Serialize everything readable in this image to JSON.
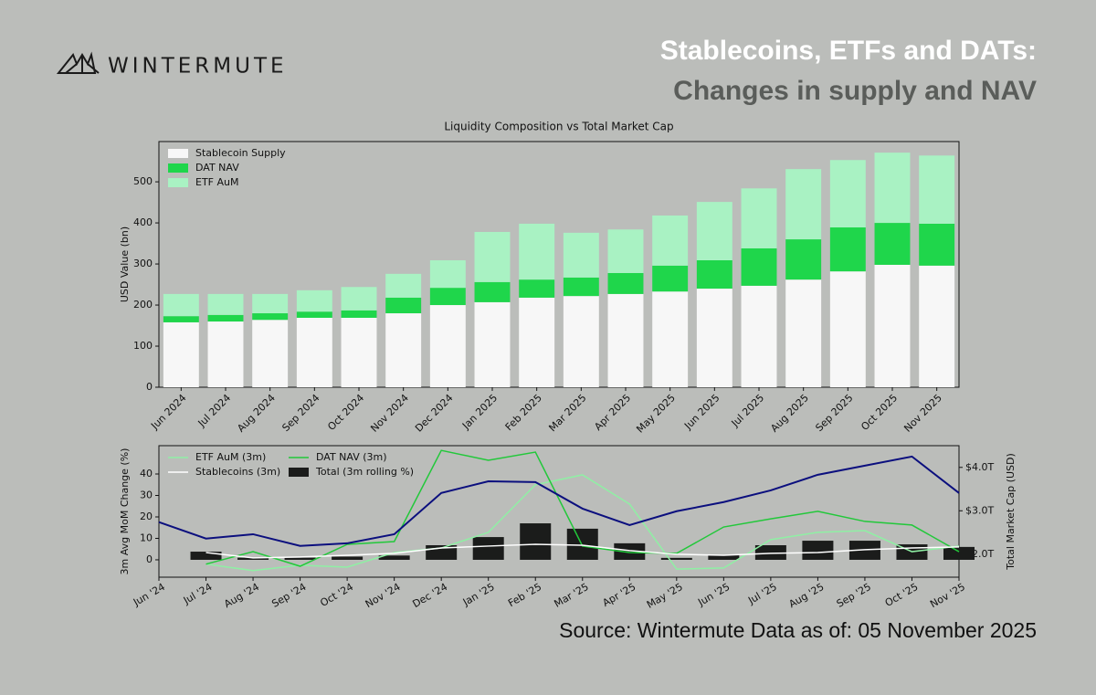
{
  "header": {
    "logo": "WINTERMUTE",
    "title": "Stablecoins, ETFs and DATs:",
    "subtitle": "Changes in supply and NAV"
  },
  "footer": {
    "source": "Source: Wintermute  Data as of: 05 November 2025"
  },
  "chart_data": [
    {
      "type": "bar",
      "stacked": true,
      "title": "Liquidity Composition vs Total Market Cap",
      "ylabel": "USD Value (bn)",
      "categories": [
        "Jun 2024",
        "Jul 2024",
        "Aug 2024",
        "Sep 2024",
        "Oct 2024",
        "Nov 2024",
        "Dec 2024",
        "Jan 2025",
        "Feb 2025",
        "Mar 2025",
        "Apr 2025",
        "May 2025",
        "Jun 2025",
        "Jul 2025",
        "Aug 2025",
        "Sep 2025",
        "Oct 2025",
        "Nov 2025"
      ],
      "series": [
        {
          "name": "Stablecoin Supply",
          "color": "#f7f7f7",
          "values": [
            158,
            160,
            164,
            169,
            169,
            180,
            200,
            207,
            218,
            222,
            227,
            233,
            240,
            247,
            262,
            282,
            298,
            296
          ]
        },
        {
          "name": "DAT NAV",
          "color": "#1fd64b",
          "values": [
            15,
            16,
            16,
            15,
            18,
            38,
            42,
            49,
            44,
            45,
            51,
            63,
            69,
            91,
            98,
            107,
            102,
            102
          ]
        },
        {
          "name": "ETF AuM",
          "color": "#a9f2c3",
          "values": [
            54,
            51,
            47,
            52,
            57,
            58,
            67,
            122,
            136,
            109,
            106,
            122,
            142,
            146,
            171,
            164,
            171,
            166
          ]
        }
      ],
      "ylim": [
        0,
        598
      ],
      "yticks": [
        0,
        100,
        200,
        300,
        400,
        500
      ],
      "legend": "upper left"
    },
    {
      "type": "combo",
      "ylabel": "3m Avg MoM Change (%)",
      "y2label": "Total Market Cap (USD)",
      "categories": [
        "Jun '24",
        "Jul '24",
        "Aug '24",
        "Sep '24",
        "Oct '24",
        "Nov '24",
        "Dec '24",
        "Jan '25",
        "Feb '25",
        "Mar '25",
        "Apr '25",
        "May '25",
        "Jun '25",
        "Jul '25",
        "Aug '25",
        "Sep '25",
        "Oct '25",
        "Nov '25"
      ],
      "series": [
        {
          "name": "ETF AuM (3m)",
          "type": "line",
          "color": "#8ff0a4",
          "values": [
            null,
            -2,
            -5,
            -2.5,
            -3.4,
            3.4,
            5.5,
            12.8,
            35,
            39.6,
            26,
            -4.3,
            -3.8,
            9.4,
            12.8,
            13.6,
            3.8,
            6.4
          ]
        },
        {
          "name": "DAT NAV (3m)",
          "type": "line",
          "color": "#22c83a",
          "values": [
            null,
            -2,
            3.8,
            -3,
            7.2,
            8.5,
            51,
            46.4,
            50.2,
            6.4,
            3.4,
            3,
            15.3,
            19.1,
            22.6,
            17.9,
            16.2,
            3.8
          ]
        },
        {
          "name": "Stablecoins (3m)",
          "type": "line",
          "color": "#ffffff",
          "values": [
            null,
            3.4,
            0.9,
            1.3,
            2.1,
            3,
            5.5,
            6.4,
            7.2,
            6.8,
            4.3,
            2.6,
            2.1,
            3,
            3.4,
            4.7,
            5.5,
            6
          ]
        },
        {
          "name": "Total (3m rolling %)",
          "type": "bar",
          "color": "#1b1c1b",
          "values": [
            null,
            3.8,
            1,
            1,
            1.5,
            2,
            6.8,
            10.6,
            17,
            14.5,
            7.7,
            0.9,
            2.1,
            6.8,
            8.9,
            8.9,
            7.2,
            6
          ]
        },
        {
          "type": "line",
          "axis": "y2",
          "color": "#0b0f7e",
          "values": [
            2.74,
            2.36,
            2.46,
            2.19,
            2.25,
            2.46,
            3.41,
            3.68,
            3.66,
            3.05,
            2.67,
            2.99,
            3.2,
            3.47,
            3.83,
            4.04,
            4.25,
            3.41
          ]
        }
      ],
      "ylim": [
        -8.1,
        53.2
      ],
      "yticks": [
        0,
        10,
        20,
        30,
        40
      ],
      "y2lim": [
        1.47,
        4.5
      ],
      "y2ticks": [
        {
          "value": 2,
          "label": "$2.0T"
        },
        {
          "value": 3,
          "label": "$3.0T"
        },
        {
          "value": 4,
          "label": "$4.0T"
        }
      ],
      "legend": "upper left",
      "legend_columns": 2
    }
  ]
}
